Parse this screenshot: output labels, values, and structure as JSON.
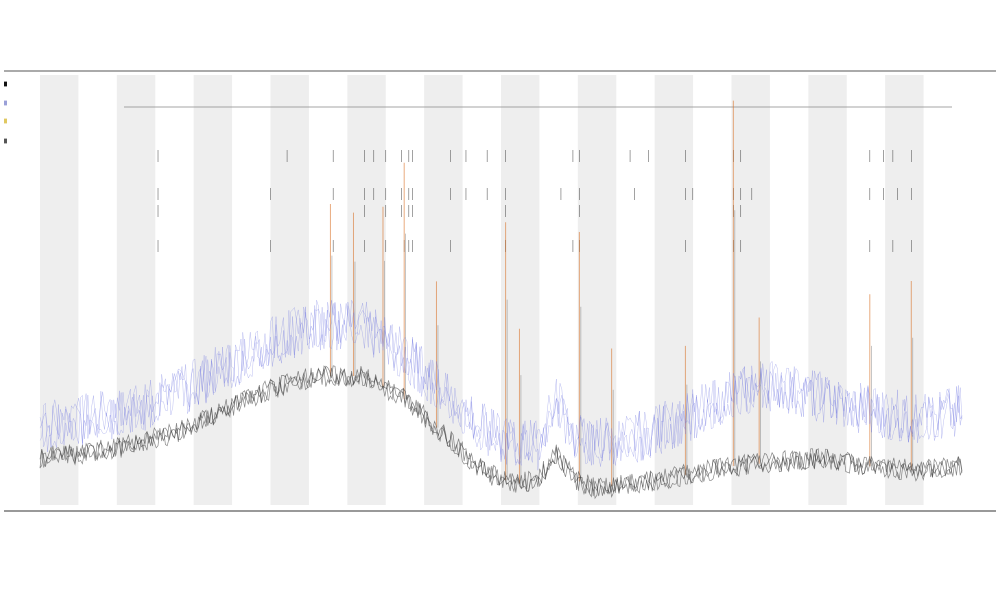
{
  "chart_data": {
    "type": "line",
    "title": "",
    "subtitle_lines": [
      "",
      ""
    ],
    "xlabel": "",
    "ylabel": "",
    "grid": false,
    "legend_position": "top-left",
    "legend": [
      {
        "name": "",
        "color": "#111111"
      },
      {
        "name": "",
        "color": "#9aa0d8"
      },
      {
        "name": "",
        "color": "#e0c860"
      },
      {
        "name": "",
        "color": "#555555"
      }
    ],
    "colors": {
      "baseline": "#3a3a3a",
      "upper": "#6b72e0",
      "event": "#d9742b",
      "marker": "#222222",
      "band": "#eeeeee"
    },
    "x_range": [
      0,
      1000
    ],
    "y_range": [
      0,
      100
    ],
    "band_count": 12,
    "baseline_series": {
      "name": "",
      "x": [
        0,
        50,
        100,
        150,
        200,
        250,
        300,
        350,
        400,
        450,
        480,
        500,
        520,
        540,
        560,
        580,
        600,
        650,
        700,
        750,
        800,
        850,
        900,
        950,
        1000
      ],
      "y": [
        11,
        12,
        14,
        17,
        22,
        27,
        30,
        30,
        24,
        14,
        8,
        6,
        5,
        6,
        12,
        6,
        4,
        5,
        7,
        9,
        10,
        11,
        9,
        8,
        9
      ]
    },
    "upper_series": {
      "name": "",
      "x": [
        0,
        50,
        100,
        150,
        200,
        250,
        300,
        350,
        400,
        450,
        480,
        500,
        520,
        540,
        560,
        580,
        600,
        650,
        700,
        750,
        800,
        850,
        900,
        950,
        1000
      ],
      "y": [
        18,
        20,
        22,
        26,
        32,
        38,
        42,
        42,
        34,
        24,
        18,
        15,
        14,
        14,
        24,
        16,
        14,
        16,
        20,
        26,
        28,
        25,
        22,
        20,
        22
      ]
    },
    "event_spikes": [
      {
        "x": 315,
        "height": 40
      },
      {
        "x": 340,
        "height": 38
      },
      {
        "x": 372,
        "height": 42
      },
      {
        "x": 395,
        "height": 55
      },
      {
        "x": 430,
        "height": 34
      },
      {
        "x": 505,
        "height": 60
      },
      {
        "x": 520,
        "height": 36
      },
      {
        "x": 585,
        "height": 58
      },
      {
        "x": 620,
        "height": 32
      },
      {
        "x": 700,
        "height": 30
      },
      {
        "x": 752,
        "height": 85
      },
      {
        "x": 780,
        "height": 34
      },
      {
        "x": 900,
        "height": 40
      },
      {
        "x": 945,
        "height": 44
      }
    ],
    "marker_rows": [
      {
        "row": 1,
        "x": [
          128,
          268,
          318,
          352,
          362,
          375,
          392,
          400,
          404,
          445,
          462,
          485,
          505,
          578,
          585,
          640,
          660,
          700,
          752,
          760,
          900,
          915,
          925,
          945
        ]
      },
      {
        "row": 2,
        "x": [
          128,
          250,
          318,
          352,
          362,
          375,
          392,
          400,
          404,
          445,
          462,
          485,
          505,
          565,
          585,
          645,
          700,
          708,
          752,
          760,
          772,
          900,
          915,
          930,
          945
        ]
      },
      {
        "row": 3,
        "x": [
          128,
          352,
          375,
          392,
          400,
          404,
          505,
          585,
          752,
          760
        ]
      },
      {
        "row": 4,
        "x": [
          128,
          250,
          318,
          352,
          375,
          395,
          400,
          404,
          445,
          505,
          578,
          585,
          700,
          752,
          760,
          900,
          925,
          945
        ]
      }
    ],
    "x_tick_labels": [],
    "y_tick_labels": []
  }
}
